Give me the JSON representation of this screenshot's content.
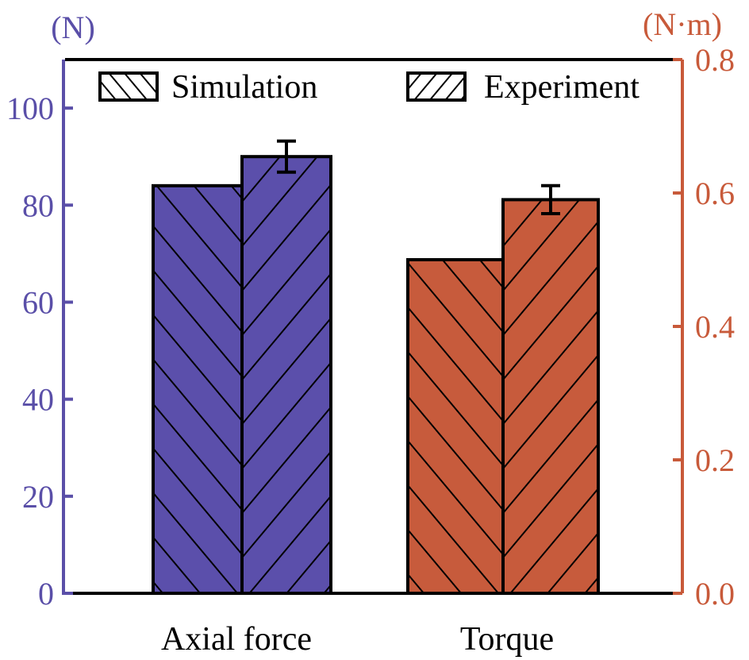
{
  "chart_data": {
    "type": "bar",
    "title": "",
    "categories": [
      "Axial force",
      "Torque"
    ],
    "series": [
      {
        "name": "Simulation",
        "hatch": "backslash",
        "values": [
          84,
          0.5
        ],
        "errors": [
          null,
          null
        ]
      },
      {
        "name": "Experiment",
        "hatch": "slash",
        "values": [
          90,
          0.59
        ],
        "errors": [
          3.2,
          0.021
        ]
      }
    ],
    "value_axis_for_category": [
      "left",
      "right"
    ],
    "left_axis": {
      "label": "(N)",
      "ylim": [
        0,
        110
      ],
      "ticks": [
        0,
        20,
        40,
        60,
        80,
        100
      ],
      "tick_labels": [
        "0",
        "20",
        "40",
        "60",
        "80",
        "100"
      ],
      "color": "#5a4fa8"
    },
    "right_axis": {
      "label": "(N·m)",
      "ylim": [
        0,
        0.8
      ],
      "ticks": [
        0.0,
        0.2,
        0.4,
        0.6,
        0.8
      ],
      "tick_labels": [
        "0.0",
        "0.2",
        "0.4",
        "0.6",
        "0.8"
      ],
      "color": "#c85a3a"
    },
    "bar_colors": [
      "#5b4fab",
      "#c75b3c"
    ],
    "legend": {
      "position": "top",
      "entries": [
        "Simulation",
        "Experiment"
      ]
    },
    "grid": false
  }
}
